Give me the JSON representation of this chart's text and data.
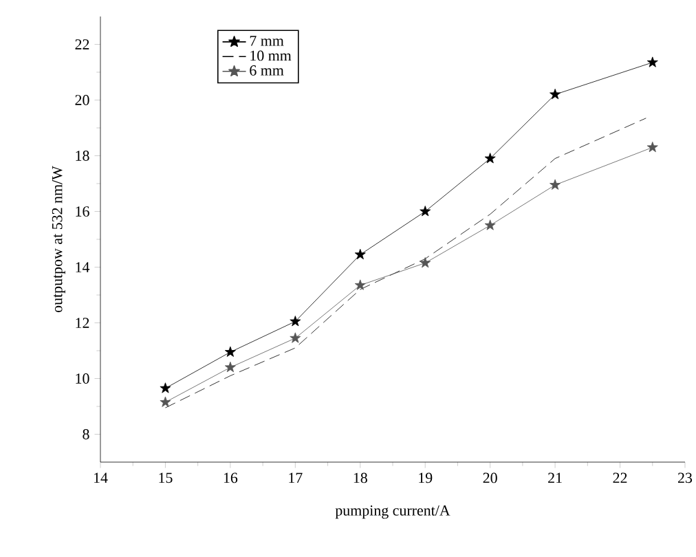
{
  "chart_data": {
    "type": "line",
    "xlabel": "pumping current/A",
    "ylabel": "outputpow at 532 nm/W",
    "xlim": [
      14,
      23
    ],
    "xticks": [
      14,
      15,
      16,
      17,
      18,
      19,
      20,
      21,
      22,
      23
    ],
    "ylim": [
      7,
      23
    ],
    "yticks": [
      8,
      10,
      12,
      14,
      16,
      18,
      20,
      22
    ],
    "legend": "top left",
    "grid": false,
    "series": [
      {
        "name": "7 mm",
        "color": "#000000",
        "marker": "star",
        "line_style": "solid",
        "x": [
          15,
          16,
          17,
          18,
          19,
          20,
          21,
          22.5
        ],
        "values": [
          9.65,
          10.95,
          12.05,
          14.45,
          16.0,
          17.9,
          20.2,
          21.35
        ]
      },
      {
        "name": "10 mm",
        "color": "#000000",
        "marker": "none",
        "line_style": "dashed",
        "x": [
          15,
          16,
          17,
          18,
          19,
          20,
          21,
          22.4
        ],
        "values": [
          8.95,
          10.1,
          11.1,
          13.2,
          14.3,
          15.9,
          17.9,
          19.35
        ]
      },
      {
        "name": "6 mm",
        "color": "#555555",
        "marker": "star",
        "line_style": "solid",
        "x": [
          15,
          16,
          17,
          18,
          19,
          20,
          21,
          22.5
        ],
        "values": [
          9.15,
          10.4,
          11.45,
          13.35,
          14.15,
          15.5,
          16.95,
          18.3
        ]
      }
    ]
  }
}
